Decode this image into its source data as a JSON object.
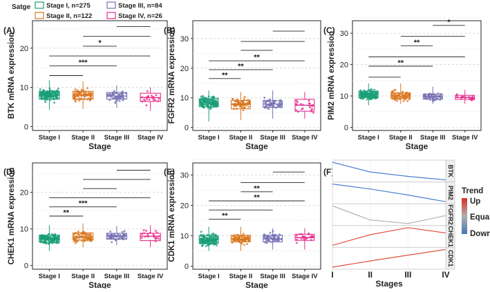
{
  "legend": {
    "title": "Satge",
    "entries": [
      {
        "label": "Stage I, n=275",
        "color": "#1a9e77"
      },
      {
        "label": "Stage II, n=122",
        "color": "#d9751d"
      },
      {
        "label": "Stage III, n=84",
        "color": "#7570b3"
      },
      {
        "label": "Stage IV, n=26",
        "color": "#e7298a"
      }
    ]
  },
  "chart_data": [
    {
      "id": "A",
      "panel_label": "(A)",
      "type": "box",
      "ylabel": "BTK mRNA expression",
      "xlabel": "Stage",
      "categories": [
        "Stage I",
        "Stage II",
        "Stage III",
        "Stage IV"
      ],
      "ylim": [
        -1,
        27
      ],
      "yticks": [
        0,
        10,
        20
      ],
      "boxes": [
        {
          "q1": 7.0,
          "median": 8.0,
          "q3": 9.0,
          "lo": 4.2,
          "hi": 11.8
        },
        {
          "q1": 7.0,
          "median": 8.0,
          "q3": 9.0,
          "lo": 4.5,
          "hi": 11.5
        },
        {
          "q1": 7.0,
          "median": 7.8,
          "q3": 8.7,
          "lo": 4.8,
          "hi": 10.5
        },
        {
          "q1": 6.4,
          "median": 7.4,
          "q3": 8.5,
          "lo": 4.0,
          "hi": 10.0
        }
      ],
      "comparisons": [
        {
          "from": 1,
          "to": 2,
          "y": 13.0,
          "label": ""
        },
        {
          "from": 1,
          "to": 3,
          "y": 15.5,
          "label": "***"
        },
        {
          "from": 1,
          "to": 4,
          "y": 18.0,
          "label": ""
        },
        {
          "from": 2,
          "to": 3,
          "y": 20.5,
          "label": "*"
        },
        {
          "from": 2,
          "to": 4,
          "y": 23.0,
          "label": ""
        },
        {
          "from": 3,
          "to": 4,
          "y": 25.5,
          "label": ""
        }
      ]
    },
    {
      "id": "B",
      "panel_label": "(B)",
      "type": "box",
      "ylabel": "FGFR2 mRNA expression",
      "xlabel": "Stage",
      "categories": [
        "Stage I",
        "Stage II",
        "Stage III",
        "Stage IV"
      ],
      "ylim": [
        -1,
        36
      ],
      "yticks": [
        0,
        10,
        20,
        30
      ],
      "boxes": [
        {
          "q1": 7.0,
          "median": 8.4,
          "q3": 9.6,
          "lo": 2.0,
          "hi": 12.5
        },
        {
          "q1": 6.3,
          "median": 7.8,
          "q3": 9.1,
          "lo": 2.5,
          "hi": 12.0
        },
        {
          "q1": 6.8,
          "median": 7.9,
          "q3": 9.0,
          "lo": 3.0,
          "hi": 12.5
        },
        {
          "q1": 5.5,
          "median": 7.5,
          "q3": 9.5,
          "lo": 3.0,
          "hi": 12.0
        }
      ],
      "comparisons": [
        {
          "from": 1,
          "to": 2,
          "y": 16.5,
          "label": "**"
        },
        {
          "from": 1,
          "to": 3,
          "y": 19.5,
          "label": "**"
        },
        {
          "from": 1,
          "to": 4,
          "y": 22.5,
          "label": "**"
        },
        {
          "from": 2,
          "to": 3,
          "y": 26.0,
          "label": ""
        },
        {
          "from": 2,
          "to": 4,
          "y": 29.0,
          "label": ""
        },
        {
          "from": 3,
          "to": 4,
          "y": 32.5,
          "label": ""
        }
      ]
    },
    {
      "id": "C",
      "panel_label": "(C)",
      "type": "box",
      "ylabel": "PIM2 mRNA expression",
      "xlabel": "Stage",
      "categories": [
        "Stage I",
        "Stage II",
        "Stage III",
        "Stage IV"
      ],
      "ylim": [
        -1,
        34
      ],
      "yticks": [
        0,
        10,
        20,
        30
      ],
      "boxes": [
        {
          "q1": 9.5,
          "median": 10.4,
          "q3": 11.5,
          "lo": 7.0,
          "hi": 14.0
        },
        {
          "q1": 9.2,
          "median": 10.0,
          "q3": 11.0,
          "lo": 7.5,
          "hi": 14.0
        },
        {
          "q1": 9.0,
          "median": 9.8,
          "q3": 10.6,
          "lo": 7.5,
          "hi": 13.0
        },
        {
          "q1": 8.9,
          "median": 9.5,
          "q3": 10.2,
          "lo": 7.5,
          "hi": 12.0
        }
      ],
      "comparisons": [
        {
          "from": 1,
          "to": 2,
          "y": 16.0,
          "label": ""
        },
        {
          "from": 1,
          "to": 3,
          "y": 19.5,
          "label": "**"
        },
        {
          "from": 1,
          "to": 4,
          "y": 22.5,
          "label": ""
        },
        {
          "from": 2,
          "to": 3,
          "y": 26.0,
          "label": "**"
        },
        {
          "from": 2,
          "to": 4,
          "y": 29.0,
          "label": ""
        },
        {
          "from": 3,
          "to": 4,
          "y": 32.5,
          "label": "*"
        }
      ]
    },
    {
      "id": "D",
      "panel_label": "(D)",
      "type": "box",
      "ylabel": "CHEK1 mRNA expression",
      "xlabel": "Stage",
      "categories": [
        "Stage I",
        "Stage II",
        "Stage III",
        "Stage IV"
      ],
      "ylim": [
        -1,
        28
      ],
      "yticks": [
        0,
        10,
        20
      ],
      "boxes": [
        {
          "q1": 6.4,
          "median": 7.3,
          "q3": 8.3,
          "lo": 4.0,
          "hi": 11.0
        },
        {
          "q1": 7.0,
          "median": 7.8,
          "q3": 8.9,
          "lo": 5.0,
          "hi": 11.5
        },
        {
          "q1": 7.2,
          "median": 8.0,
          "q3": 8.8,
          "lo": 5.5,
          "hi": 10.8
        },
        {
          "q1": 6.8,
          "median": 8.0,
          "q3": 8.8,
          "lo": 5.0,
          "hi": 11.0
        }
      ],
      "comparisons": [
        {
          "from": 1,
          "to": 2,
          "y": 13.5,
          "label": "**"
        },
        {
          "from": 1,
          "to": 3,
          "y": 16.0,
          "label": "***"
        },
        {
          "from": 1,
          "to": 4,
          "y": 18.5,
          "label": ""
        },
        {
          "from": 2,
          "to": 3,
          "y": 21.0,
          "label": ""
        },
        {
          "from": 2,
          "to": 4,
          "y": 23.5,
          "label": ""
        },
        {
          "from": 3,
          "to": 4,
          "y": 26.0,
          "label": ""
        }
      ]
    },
    {
      "id": "E",
      "panel_label": "(E)",
      "type": "box",
      "ylabel": "CDK1 mRNA expression",
      "xlabel": "Stage",
      "categories": [
        "Stage I",
        "Stage II",
        "Stage III",
        "Stage IV"
      ],
      "ylim": [
        -1,
        34
      ],
      "yticks": [
        0,
        10,
        20,
        30
      ],
      "boxes": [
        {
          "q1": 7.5,
          "median": 8.7,
          "q3": 10.0,
          "lo": 5.0,
          "hi": 13.0
        },
        {
          "q1": 8.0,
          "median": 9.0,
          "q3": 10.2,
          "lo": 5.0,
          "hi": 13.0
        },
        {
          "q1": 8.0,
          "median": 9.0,
          "q3": 10.2,
          "lo": 5.5,
          "hi": 12.5
        },
        {
          "q1": 8.5,
          "median": 9.4,
          "q3": 10.5,
          "lo": 5.5,
          "hi": 12.5
        }
      ],
      "comparisons": [
        {
          "from": 1,
          "to": 2,
          "y": 15.5,
          "label": "**"
        },
        {
          "from": 1,
          "to": 3,
          "y": 18.5,
          "label": ""
        },
        {
          "from": 1,
          "to": 4,
          "y": 21.5,
          "label": "**"
        },
        {
          "from": 2,
          "to": 3,
          "y": 24.5,
          "label": "**"
        },
        {
          "from": 2,
          "to": 4,
          "y": 27.5,
          "label": ""
        },
        {
          "from": 3,
          "to": 4,
          "y": 31.0,
          "label": ""
        }
      ]
    },
    {
      "id": "F",
      "panel_label": "(F)",
      "type": "line",
      "xlabel": "Stages",
      "categories": [
        "I",
        "II",
        "III",
        "IV"
      ],
      "legend": {
        "title": "Trend",
        "labels": [
          "Up",
          "Equal",
          "Down"
        ],
        "colors": [
          "#d73027",
          "#b0b0b0",
          "#4575b4"
        ]
      },
      "series": [
        {
          "name": "BTK",
          "values": [
            1.0,
            0.45,
            0.2,
            0.0
          ],
          "color": "#4a7fd0"
        },
        {
          "name": "PIM2",
          "values": [
            1.0,
            0.72,
            0.38,
            0.0
          ],
          "color": "#4a7fd0"
        },
        {
          "name": "FGFR2",
          "values": [
            1.0,
            0.2,
            0.0,
            0.45
          ],
          "color": "#b0b0b0"
        },
        {
          "name": "CHEK1",
          "values": [
            0.0,
            0.6,
            1.0,
            0.7
          ],
          "color": "#e0503a"
        },
        {
          "name": "CDK1",
          "values": [
            0.0,
            0.35,
            0.68,
            1.0
          ],
          "color": "#e0503a"
        }
      ]
    }
  ]
}
